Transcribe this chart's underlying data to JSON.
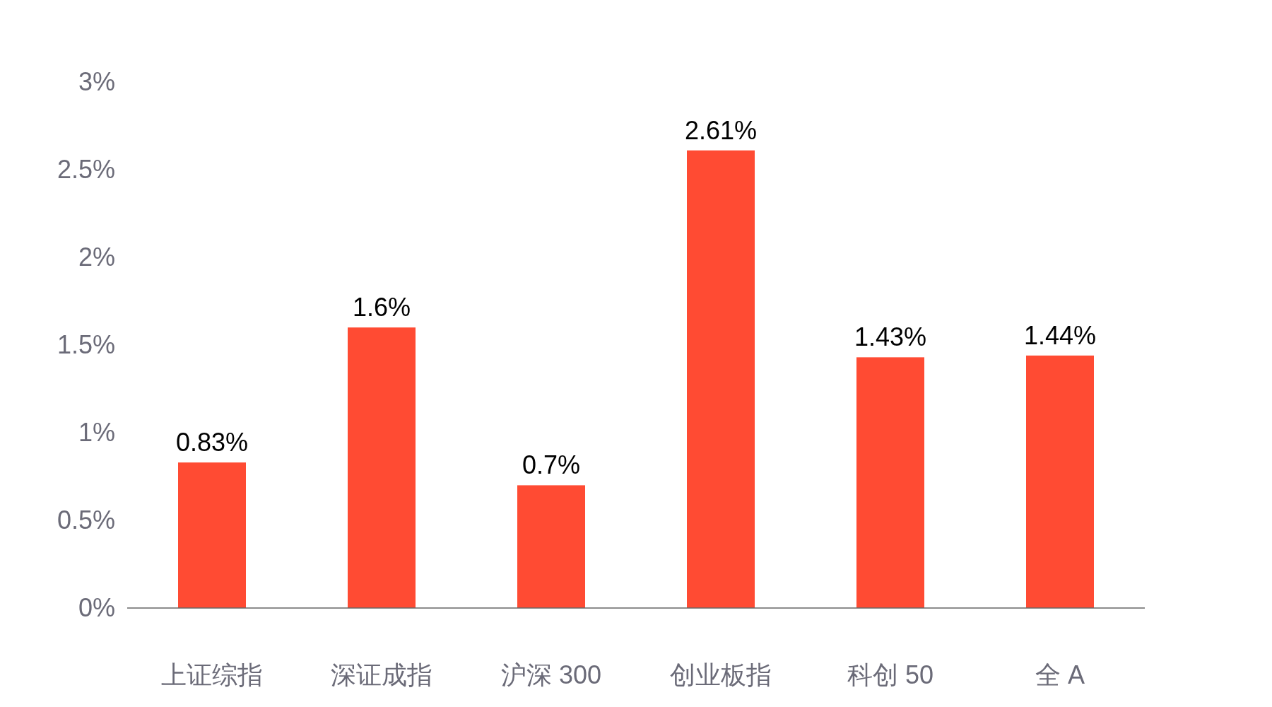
{
  "chart_data": {
    "type": "bar",
    "categories": [
      "上证综指",
      "深证成指",
      "沪深 300",
      "创业板指",
      "科创 50",
      "全 A"
    ],
    "values": [
      0.83,
      1.6,
      0.7,
      2.61,
      1.43,
      1.44
    ],
    "value_labels": [
      "0.83%",
      "1.6%",
      "0.7%",
      "2.61%",
      "1.43%",
      "1.44%"
    ],
    "color": "#ff4b33",
    "ylim": [
      0,
      3
    ],
    "yticks": [
      {
        "value": 0,
        "label": "0%"
      },
      {
        "value": 0.5,
        "label": "0.5%"
      },
      {
        "value": 1,
        "label": "1%"
      },
      {
        "value": 1.5,
        "label": "1.5%"
      },
      {
        "value": 2,
        "label": "2%"
      },
      {
        "value": 2.5,
        "label": "2.5%"
      },
      {
        "value": 3,
        "label": "3%"
      }
    ],
    "grid": false
  }
}
